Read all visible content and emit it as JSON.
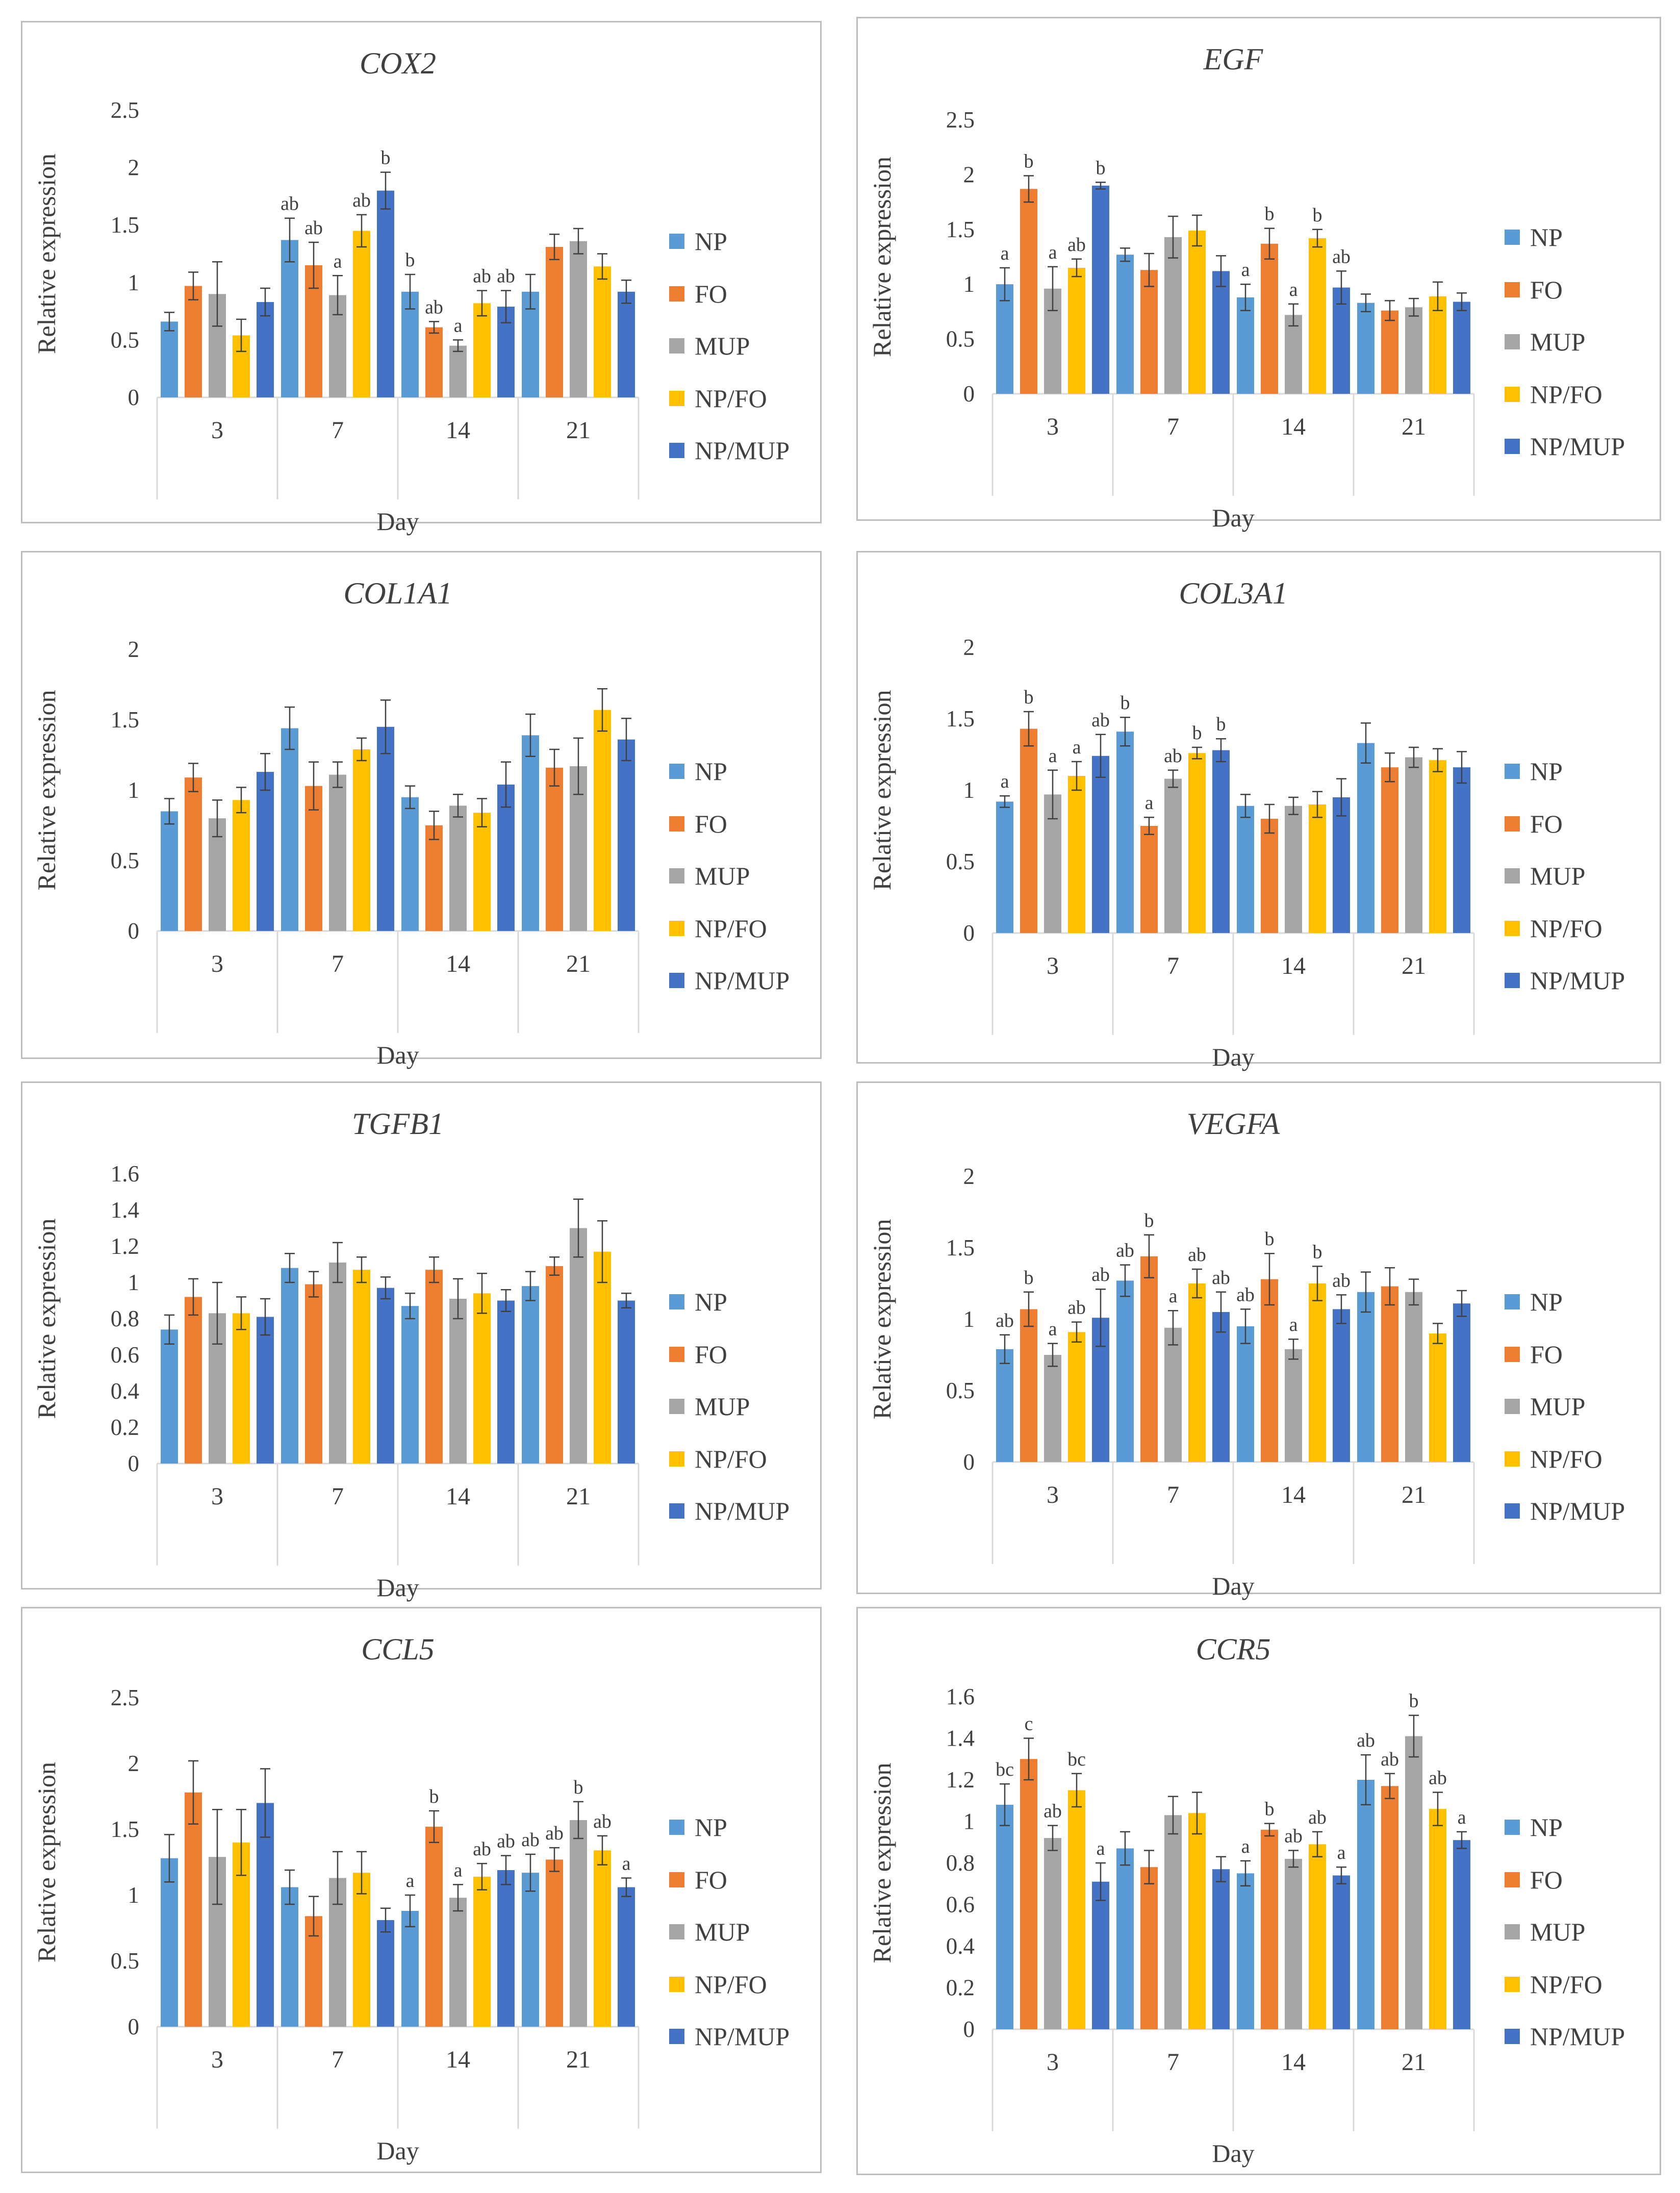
{
  "colors": {
    "NP": "#5b9bd5",
    "FO": "#ed7d31",
    "MUP": "#a5a5a5",
    "NP/FO": "#ffc000",
    "NP/MUP": "#4472c4",
    "axis": "#d9d9d9",
    "text": "#404040",
    "error": "#404040",
    "frame": "#bdbdbd"
  },
  "chart_data": [
    {
      "type": "bar",
      "title": "COX2",
      "xlabel": "Day",
      "ylabel": "Relative expression",
      "categories": [
        "3",
        "7",
        "14",
        "21"
      ],
      "ylim": [
        0,
        2.5
      ],
      "yticks": [
        "0",
        "0.5",
        "1",
        "1.5",
        "2",
        "2.5"
      ],
      "grid": false,
      "legend": "right",
      "series": [
        {
          "name": "NP",
          "values": [
            0.66,
            1.37,
            0.92,
            0.92
          ],
          "errors": [
            0.08,
            0.19,
            0.15,
            0.15
          ],
          "labels": [
            "",
            "ab",
            "b",
            ""
          ]
        },
        {
          "name": "FO",
          "values": [
            0.97,
            1.15,
            0.61,
            1.31
          ],
          "errors": [
            0.12,
            0.2,
            0.05,
            0.11
          ],
          "labels": [
            "",
            "ab",
            "ab",
            ""
          ]
        },
        {
          "name": "MUP",
          "values": [
            0.9,
            0.89,
            0.45,
            1.36
          ],
          "errors": [
            0.28,
            0.17,
            0.05,
            0.11
          ],
          "labels": [
            "",
            "a",
            "a",
            ""
          ]
        },
        {
          "name": "NP/FO",
          "values": [
            0.54,
            1.45,
            0.82,
            1.14
          ],
          "errors": [
            0.14,
            0.14,
            0.11,
            0.11
          ],
          "labels": [
            "",
            "ab",
            "ab",
            ""
          ]
        },
        {
          "name": "NP/MUP",
          "values": [
            0.83,
            1.8,
            0.79,
            0.92
          ],
          "errors": [
            0.12,
            0.16,
            0.14,
            0.1
          ],
          "labels": [
            "",
            "b",
            "ab",
            ""
          ]
        }
      ]
    },
    {
      "type": "bar",
      "title": "EGF",
      "xlabel": "Day",
      "ylabel": "Relative expression",
      "categories": [
        "3",
        "7",
        "14",
        "21"
      ],
      "ylim": [
        0,
        2.5
      ],
      "yticks": [
        "0",
        "0.5",
        "1",
        "1.5",
        "2",
        "2.5"
      ],
      "grid": false,
      "legend": "right",
      "series": [
        {
          "name": "NP",
          "values": [
            1.0,
            1.27,
            0.88,
            0.83
          ],
          "errors": [
            0.15,
            0.06,
            0.12,
            0.08
          ],
          "labels": [
            "a",
            "",
            "a",
            ""
          ]
        },
        {
          "name": "FO",
          "values": [
            1.87,
            1.13,
            1.37,
            0.76
          ],
          "errors": [
            0.12,
            0.15,
            0.14,
            0.09
          ],
          "labels": [
            "b",
            "",
            "b",
            ""
          ]
        },
        {
          "name": "MUP",
          "values": [
            0.96,
            1.43,
            0.72,
            0.79
          ],
          "errors": [
            0.2,
            0.19,
            0.1,
            0.08
          ],
          "labels": [
            "a",
            "",
            "a",
            ""
          ]
        },
        {
          "name": "NP/FO",
          "values": [
            1.15,
            1.49,
            1.42,
            0.89
          ],
          "errors": [
            0.08,
            0.14,
            0.08,
            0.13
          ],
          "labels": [
            "ab",
            "",
            "b",
            ""
          ]
        },
        {
          "name": "NP/MUP",
          "values": [
            1.9,
            1.12,
            0.97,
            0.84
          ],
          "errors": [
            0.03,
            0.14,
            0.15,
            0.08
          ],
          "labels": [
            "b",
            "",
            "ab",
            ""
          ]
        }
      ]
    },
    {
      "type": "bar",
      "title": "COL1A1",
      "xlabel": "Day",
      "ylabel": "Relative expression",
      "categories": [
        "3",
        "7",
        "14",
        "21"
      ],
      "ylim": [
        0,
        2
      ],
      "yticks": [
        "0",
        "0.5",
        "1",
        "1.5",
        "2"
      ],
      "grid": false,
      "legend": "right",
      "series": [
        {
          "name": "NP",
          "values": [
            0.85,
            1.44,
            0.95,
            1.39
          ],
          "errors": [
            0.09,
            0.15,
            0.08,
            0.15
          ],
          "labels": [
            "",
            "",
            "",
            ""
          ]
        },
        {
          "name": "FO",
          "values": [
            1.09,
            1.03,
            0.75,
            1.16
          ],
          "errors": [
            0.1,
            0.17,
            0.1,
            0.13
          ],
          "labels": [
            "",
            "",
            "",
            ""
          ]
        },
        {
          "name": "MUP",
          "values": [
            0.8,
            1.11,
            0.89,
            1.17
          ],
          "errors": [
            0.13,
            0.09,
            0.08,
            0.2
          ],
          "labels": [
            "",
            "",
            "",
            ""
          ]
        },
        {
          "name": "NP/FO",
          "values": [
            0.93,
            1.29,
            0.84,
            1.57
          ],
          "errors": [
            0.09,
            0.08,
            0.1,
            0.15
          ],
          "labels": [
            "",
            "",
            "",
            ""
          ]
        },
        {
          "name": "NP/MUP",
          "values": [
            1.13,
            1.45,
            1.04,
            1.36
          ],
          "errors": [
            0.13,
            0.19,
            0.16,
            0.15
          ],
          "labels": [
            "",
            "",
            "",
            ""
          ]
        }
      ]
    },
    {
      "type": "bar",
      "title": "COL3A1",
      "xlabel": "Day",
      "ylabel": "Relative expression",
      "categories": [
        "3",
        "7",
        "14",
        "21"
      ],
      "ylim": [
        0,
        2
      ],
      "yticks": [
        "0",
        "0.5",
        "1",
        "1.5",
        "2"
      ],
      "grid": false,
      "legend": "right",
      "series": [
        {
          "name": "NP",
          "values": [
            0.92,
            1.41,
            0.89,
            1.33
          ],
          "errors": [
            0.04,
            0.1,
            0.08,
            0.14
          ],
          "labels": [
            "a",
            "b",
            "",
            ""
          ]
        },
        {
          "name": "FO",
          "values": [
            1.43,
            0.75,
            0.8,
            1.16
          ],
          "errors": [
            0.12,
            0.06,
            0.1,
            0.1
          ],
          "labels": [
            "b",
            "a",
            "",
            ""
          ]
        },
        {
          "name": "MUP",
          "values": [
            0.97,
            1.08,
            0.89,
            1.23
          ],
          "errors": [
            0.17,
            0.06,
            0.06,
            0.07
          ],
          "labels": [
            "a",
            "ab",
            "",
            ""
          ]
        },
        {
          "name": "NP/FO",
          "values": [
            1.1,
            1.26,
            0.9,
            1.21
          ],
          "errors": [
            0.1,
            0.04,
            0.09,
            0.08
          ],
          "labels": [
            "a",
            "b",
            "",
            ""
          ]
        },
        {
          "name": "NP/MUP",
          "values": [
            1.24,
            1.28,
            0.95,
            1.16
          ],
          "errors": [
            0.15,
            0.08,
            0.13,
            0.11
          ],
          "labels": [
            "ab",
            "b",
            "",
            ""
          ]
        }
      ]
    },
    {
      "type": "bar",
      "title": "TGFB1",
      "xlabel": "Day",
      "ylabel": "Relative expression",
      "categories": [
        "3",
        "7",
        "14",
        "21"
      ],
      "ylim": [
        0,
        1.6
      ],
      "yticks": [
        "0",
        "0.2",
        "0.4",
        "0.6",
        "0.8",
        "1",
        "1.2",
        "1.4",
        "1.6"
      ],
      "grid": false,
      "legend": "right",
      "series": [
        {
          "name": "NP",
          "values": [
            0.74,
            1.08,
            0.87,
            0.98
          ],
          "errors": [
            0.08,
            0.08,
            0.07,
            0.08
          ],
          "labels": [
            "",
            "",
            "",
            ""
          ]
        },
        {
          "name": "FO",
          "values": [
            0.92,
            0.99,
            1.07,
            1.09
          ],
          "errors": [
            0.1,
            0.07,
            0.07,
            0.05
          ],
          "labels": [
            "",
            "",
            "",
            ""
          ]
        },
        {
          "name": "MUP",
          "values": [
            0.83,
            1.11,
            0.91,
            1.3
          ],
          "errors": [
            0.17,
            0.11,
            0.11,
            0.16
          ],
          "labels": [
            "",
            "",
            "",
            ""
          ]
        },
        {
          "name": "NP/FO",
          "values": [
            0.83,
            1.07,
            0.94,
            1.17
          ],
          "errors": [
            0.09,
            0.07,
            0.11,
            0.17
          ],
          "labels": [
            "",
            "",
            "",
            ""
          ]
        },
        {
          "name": "NP/MUP",
          "values": [
            0.81,
            0.97,
            0.9,
            0.9
          ],
          "errors": [
            0.1,
            0.06,
            0.06,
            0.04
          ],
          "labels": [
            "",
            "",
            "",
            ""
          ]
        }
      ]
    },
    {
      "type": "bar",
      "title": "VEGFA",
      "xlabel": "Day",
      "ylabel": "Relative expression",
      "categories": [
        "3",
        "7",
        "14",
        "21"
      ],
      "ylim": [
        0,
        2
      ],
      "yticks": [
        "0",
        "0.5",
        "1",
        "1.5",
        "2"
      ],
      "grid": false,
      "legend": "right",
      "series": [
        {
          "name": "NP",
          "values": [
            0.79,
            1.27,
            0.95,
            1.19
          ],
          "errors": [
            0.1,
            0.11,
            0.12,
            0.14
          ],
          "labels": [
            "ab",
            "ab",
            "ab",
            ""
          ]
        },
        {
          "name": "FO",
          "values": [
            1.07,
            1.44,
            1.28,
            1.23
          ],
          "errors": [
            0.12,
            0.15,
            0.18,
            0.13
          ],
          "labels": [
            "b",
            "b",
            "b",
            ""
          ]
        },
        {
          "name": "MUP",
          "values": [
            0.75,
            0.94,
            0.79,
            1.19
          ],
          "errors": [
            0.08,
            0.12,
            0.07,
            0.09
          ],
          "labels": [
            "a",
            "a",
            "a",
            ""
          ]
        },
        {
          "name": "NP/FO",
          "values": [
            0.91,
            1.25,
            1.25,
            0.9
          ],
          "errors": [
            0.07,
            0.1,
            0.12,
            0.07
          ],
          "labels": [
            "ab",
            "ab",
            "b",
            ""
          ]
        },
        {
          "name": "NP/MUP",
          "values": [
            1.01,
            1.05,
            1.07,
            1.11
          ],
          "errors": [
            0.2,
            0.14,
            0.1,
            0.09
          ],
          "labels": [
            "ab",
            "ab",
            "ab",
            ""
          ]
        }
      ]
    },
    {
      "type": "bar",
      "title": "CCL5",
      "xlabel": "Day",
      "ylabel": "Relative expression",
      "categories": [
        "3",
        "7",
        "14",
        "21"
      ],
      "ylim": [
        0,
        2.5
      ],
      "yticks": [
        "0",
        "0.5",
        "1",
        "1.5",
        "2",
        "2.5"
      ],
      "grid": false,
      "legend": "right",
      "series": [
        {
          "name": "NP",
          "values": [
            1.28,
            1.06,
            0.88,
            1.17
          ],
          "errors": [
            0.18,
            0.13,
            0.12,
            0.14
          ],
          "labels": [
            "",
            "",
            "a",
            "ab"
          ]
        },
        {
          "name": "FO",
          "values": [
            1.78,
            0.84,
            1.52,
            1.27
          ],
          "errors": [
            0.24,
            0.15,
            0.12,
            0.09
          ],
          "labels": [
            "",
            "",
            "b",
            "ab"
          ]
        },
        {
          "name": "MUP",
          "values": [
            1.29,
            1.13,
            0.98,
            1.57
          ],
          "errors": [
            0.36,
            0.2,
            0.1,
            0.14
          ],
          "labels": [
            "",
            "",
            "a",
            "b"
          ]
        },
        {
          "name": "NP/FO",
          "values": [
            1.4,
            1.17,
            1.14,
            1.34
          ],
          "errors": [
            0.25,
            0.16,
            0.1,
            0.11
          ],
          "labels": [
            "",
            "",
            "ab",
            "ab"
          ]
        },
        {
          "name": "NP/MUP",
          "values": [
            1.7,
            0.81,
            1.19,
            1.06
          ],
          "errors": [
            0.26,
            0.09,
            0.11,
            0.07
          ],
          "labels": [
            "",
            "",
            "ab",
            "a"
          ]
        }
      ]
    },
    {
      "type": "bar",
      "title": "CCR5",
      "xlabel": "Day",
      "ylabel": "Relative expression",
      "categories": [
        "3",
        "7",
        "14",
        "21"
      ],
      "ylim": [
        0,
        1.6
      ],
      "yticks": [
        "0",
        "0.2",
        "0.4",
        "0.6",
        "0.8",
        "1",
        "1.2",
        "1.4",
        "1.6"
      ],
      "grid": false,
      "legend": "right",
      "series": [
        {
          "name": "NP",
          "values": [
            1.08,
            0.87,
            0.75,
            1.2
          ],
          "errors": [
            0.1,
            0.08,
            0.06,
            0.12
          ],
          "labels": [
            "bc",
            "",
            "a",
            "ab"
          ]
        },
        {
          "name": "FO",
          "values": [
            1.3,
            0.78,
            0.96,
            1.17
          ],
          "errors": [
            0.1,
            0.08,
            0.03,
            0.06
          ],
          "labels": [
            "c",
            "",
            "b",
            "ab"
          ]
        },
        {
          "name": "MUP",
          "values": [
            0.92,
            1.03,
            0.82,
            1.41
          ],
          "errors": [
            0.06,
            0.09,
            0.04,
            0.1
          ],
          "labels": [
            "ab",
            "",
            "ab",
            "b"
          ]
        },
        {
          "name": "NP/FO",
          "values": [
            1.15,
            1.04,
            0.89,
            1.06
          ],
          "errors": [
            0.08,
            0.1,
            0.06,
            0.08
          ],
          "labels": [
            "bc",
            "",
            "ab",
            "ab"
          ]
        },
        {
          "name": "NP/MUP",
          "values": [
            0.71,
            0.77,
            0.74,
            0.91
          ],
          "errors": [
            0.09,
            0.06,
            0.04,
            0.04
          ],
          "labels": [
            "a",
            "",
            "a",
            "a"
          ]
        }
      ]
    }
  ]
}
